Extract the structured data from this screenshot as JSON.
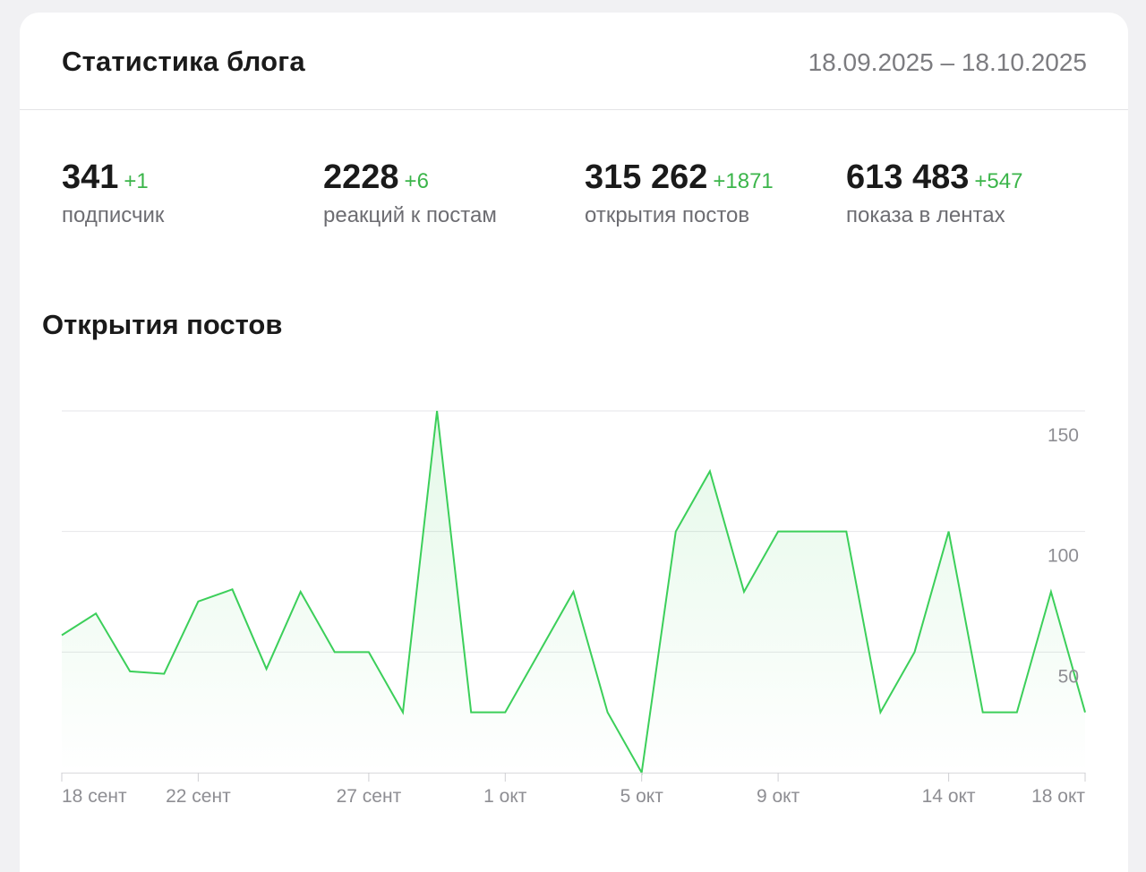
{
  "header": {
    "title": "Статистика блога",
    "date_range": "18.09.2025 – 18.10.2025"
  },
  "stats": [
    {
      "value": "341",
      "delta": "+1",
      "label": "подписчик"
    },
    {
      "value": "2228",
      "delta": "+6",
      "label": "реакций к постам"
    },
    {
      "value": "315 262",
      "delta": "+1871",
      "label": "открытия постов"
    },
    {
      "value": "613 483",
      "delta": "+547",
      "label": "показа в лентах"
    }
  ],
  "chart_section": {
    "title": "Открытия постов"
  },
  "colors": {
    "line": "#3ccf5a",
    "delta_green": "#3bb54a",
    "grid": "#e6e6e9",
    "tick_text": "#8e8e93"
  },
  "chart_data": {
    "type": "area",
    "title": "Открытия постов",
    "x": [
      "18.09",
      "19.09",
      "20.09",
      "21.09",
      "22.09",
      "23.09",
      "24.09",
      "25.09",
      "26.09",
      "27.09",
      "28.09",
      "29.09",
      "30.09",
      "01.10",
      "02.10",
      "03.10",
      "04.10",
      "05.10",
      "06.10",
      "07.10",
      "08.10",
      "09.10",
      "10.10",
      "11.10",
      "12.10",
      "13.10",
      "14.10",
      "15.10",
      "16.10",
      "17.10",
      "18.10"
    ],
    "series": [
      {
        "values": [
          57,
          66,
          42,
          41,
          71,
          76,
          43,
          75,
          50,
          50,
          25,
          150,
          25,
          25,
          50,
          75,
          25,
          0,
          100,
          125,
          75,
          100,
          100,
          100,
          25,
          50,
          100,
          25,
          25,
          75,
          25
        ]
      }
    ],
    "x_tick_labels": [
      {
        "label": "18 сент",
        "index": 0
      },
      {
        "label": "22 сент",
        "index": 4
      },
      {
        "label": "27 сент",
        "index": 9
      },
      {
        "label": "1 окт",
        "index": 13
      },
      {
        "label": "5 окт",
        "index": 17
      },
      {
        "label": "9 окт",
        "index": 21
      },
      {
        "label": "14 окт",
        "index": 26
      },
      {
        "label": "18 окт",
        "index": 30
      }
    ],
    "y_ticks": [
      50,
      100,
      150
    ],
    "ylim": [
      0,
      150
    ],
    "grid": true,
    "legend": "none"
  }
}
